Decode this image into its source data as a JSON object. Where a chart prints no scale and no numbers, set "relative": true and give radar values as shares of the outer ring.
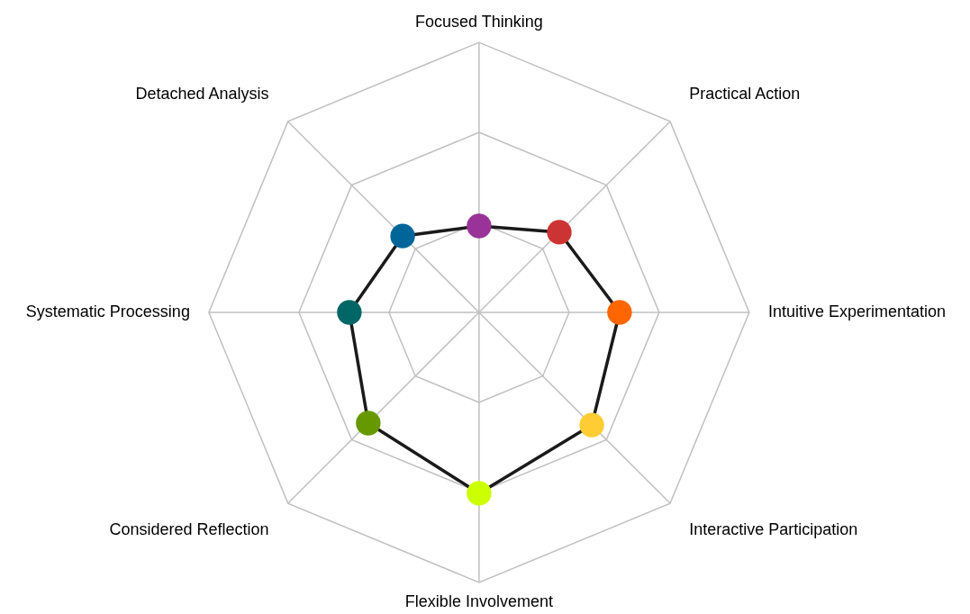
{
  "chart_data": {
    "type": "radar",
    "relative": true,
    "grid": true,
    "marker": "circle",
    "line_style": "solid",
    "categories": [
      "Focused Thinking",
      "Practical Action",
      "Intuitive Experimentation",
      "Interactive Participation",
      "Flexible Involvement",
      "Considered Reflection",
      "Systematic Processing",
      "Detached Analysis"
    ],
    "series": [
      {
        "color": "#1a1a1a",
        "colors": [
          "#993399",
          "#cc3333",
          "#ff6600",
          "#ffcc33",
          "#ccff00",
          "#669900",
          "#006666",
          "#006699"
        ],
        "values": [
          0.32,
          0.42,
          0.52,
          0.59,
          0.67,
          0.58,
          0.48,
          0.4
        ]
      }
    ]
  }
}
